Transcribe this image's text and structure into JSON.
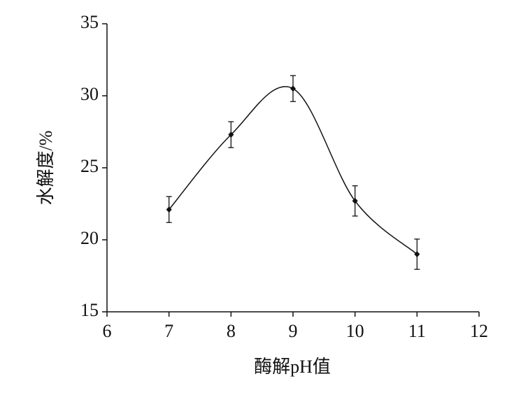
{
  "chart_data": {
    "type": "line",
    "xlabel": "酶解pH值",
    "ylabel": "水解度/%",
    "x": [
      7,
      8,
      9,
      10,
      11
    ],
    "values": [
      22.1,
      27.3,
      30.5,
      22.7,
      19.0
    ],
    "errors": [
      0.9,
      0.9,
      0.9,
      1.05,
      1.05
    ],
    "color": "#111111",
    "xlim": [
      6,
      12
    ],
    "xticks": [
      6,
      7,
      8,
      9,
      10,
      11,
      12
    ],
    "ylim": [
      15,
      35
    ],
    "yticks": [
      15,
      20,
      25,
      30,
      35
    ]
  }
}
